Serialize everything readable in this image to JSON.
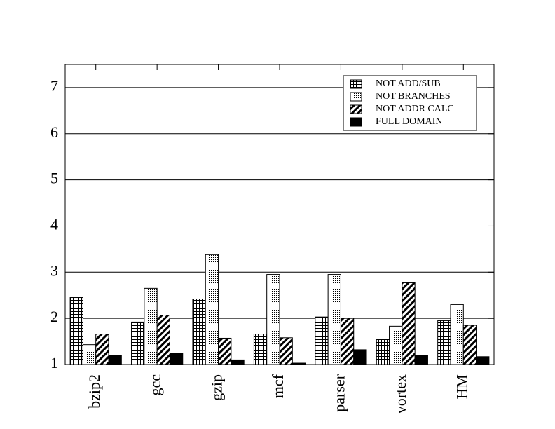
{
  "chart_data": {
    "type": "bar",
    "categories": [
      "bzip2",
      "gcc",
      "gzip",
      "mcf",
      "parser",
      "vortex",
      "HM"
    ],
    "series": [
      {
        "name": "NOT ADD/SUB",
        "color": "#000000",
        "pattern": "grid",
        "values": [
          2.45,
          1.92,
          2.42,
          1.66,
          2.03,
          1.55,
          1.95
        ]
      },
      {
        "name": "NOT BRANCHES",
        "color": "#000000",
        "pattern": "dots",
        "values": [
          1.43,
          2.65,
          3.38,
          2.95,
          2.95,
          1.83,
          2.3
        ]
      },
      {
        "name": "NOT ADDR CALC",
        "color": "#000000",
        "pattern": "hatch",
        "values": [
          1.66,
          2.07,
          1.57,
          1.58,
          2.0,
          2.77,
          1.85
        ]
      },
      {
        "name": "FULL DOMAIN",
        "color": "#000000",
        "pattern": "solid",
        "values": [
          1.2,
          1.25,
          1.1,
          1.03,
          1.32,
          1.19,
          1.17
        ]
      }
    ],
    "ylim": [
      1,
      7.5
    ],
    "yticks": [
      1,
      2,
      3,
      4,
      5,
      6,
      7
    ],
    "grid": true,
    "legend": "upper right"
  }
}
